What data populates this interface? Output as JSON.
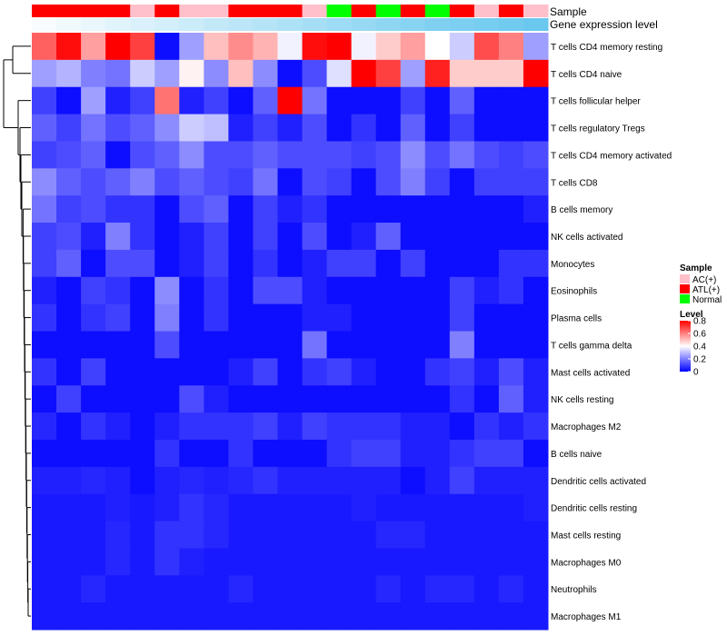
{
  "chart_data": {
    "type": "heatmap",
    "title": "",
    "annotation_labels": [
      "Sample",
      "Gene expression level"
    ],
    "sample_groups": [
      "ATL(+)",
      "ATL(+)",
      "ATL(+)",
      "ATL(+)",
      "AC(+)",
      "ATL(+)",
      "AC(+)",
      "AC(+)",
      "ATL(+)",
      "ATL(+)",
      "ATL(+)",
      "AC(+)",
      "Normal",
      "ATL(+)",
      "Normal",
      "ATL(+)",
      "Normal",
      "ATL(+)",
      "AC(+)",
      "ATL(+)",
      "AC(+)"
    ],
    "gene_expression_level": [
      0.05,
      0.1,
      0.15,
      0.2,
      0.25,
      0.3,
      0.35,
      0.4,
      0.45,
      0.5,
      0.55,
      0.6,
      0.65,
      0.7,
      0.75,
      0.8,
      0.85,
      0.88,
      0.91,
      0.95,
      1.0
    ],
    "rows": [
      "T cells CD4 memory resting",
      "T cells CD4 naive",
      "T cells follicular helper",
      "T cells regulatory  Tregs",
      "T cells CD4 memory activated",
      "T cells CD8",
      "B cells memory",
      "NK cells activated",
      "Monocytes",
      "Eosinophils",
      "Plasma cells",
      "T cells gamma delta",
      "Mast cells activated",
      "NK cells resting",
      "Macrophages M2",
      "B cells naive",
      "Dendritic cells activated",
      "Dendritic cells resting",
      "Mast cells resting",
      "Macrophages M0",
      "Neutrophils",
      "Macrophages M1"
    ],
    "values": [
      [
        0.65,
        0.78,
        0.55,
        0.8,
        0.7,
        0.02,
        0.25,
        0.5,
        0.58,
        0.52,
        0.38,
        0.78,
        0.8,
        0.38,
        0.48,
        0.55,
        0.4,
        0.32,
        0.68,
        0.6,
        0.25
      ],
      [
        0.25,
        0.28,
        0.2,
        0.18,
        0.32,
        0.25,
        0.42,
        0.22,
        0.5,
        0.22,
        0.02,
        0.12,
        0.35,
        0.82,
        0.7,
        0.25,
        0.75,
        0.48,
        0.48,
        0.48,
        0.82
      ],
      [
        0.1,
        0.02,
        0.25,
        0.05,
        0.1,
        0.62,
        0.05,
        0.1,
        0.02,
        0.15,
        0.8,
        0.18,
        0.02,
        0.02,
        0.02,
        0.1,
        0.02,
        0.15,
        0.02,
        0.02,
        0.02
      ],
      [
        0.15,
        0.1,
        0.18,
        0.12,
        0.15,
        0.22,
        0.32,
        0.3,
        0.05,
        0.1,
        0.05,
        0.12,
        0.02,
        0.08,
        0.02,
        0.15,
        0.02,
        0.1,
        0.02,
        0.02,
        0.02
      ],
      [
        0.1,
        0.12,
        0.15,
        0.02,
        0.12,
        0.15,
        0.22,
        0.12,
        0.12,
        0.15,
        0.12,
        0.12,
        0.12,
        0.1,
        0.12,
        0.22,
        0.12,
        0.18,
        0.12,
        0.1,
        0.12
      ],
      [
        0.22,
        0.15,
        0.12,
        0.15,
        0.2,
        0.12,
        0.15,
        0.12,
        0.1,
        0.18,
        0.02,
        0.12,
        0.1,
        0.02,
        0.12,
        0.2,
        0.1,
        0.02,
        0.1,
        0.1,
        0.1
      ],
      [
        0.18,
        0.1,
        0.12,
        0.08,
        0.08,
        0.02,
        0.12,
        0.15,
        0.02,
        0.1,
        0.05,
        0.08,
        0.02,
        0.02,
        0.02,
        0.02,
        0.02,
        0.02,
        0.02,
        0.02,
        0.05
      ],
      [
        0.1,
        0.12,
        0.05,
        0.2,
        0.08,
        0.02,
        0.05,
        0.1,
        0.02,
        0.1,
        0.02,
        0.12,
        0.02,
        0.05,
        0.15,
        0.02,
        0.02,
        0.02,
        0.02,
        0.02,
        0.02
      ],
      [
        0.1,
        0.15,
        0.02,
        0.12,
        0.12,
        0.02,
        0.05,
        0.1,
        0.02,
        0.08,
        0.02,
        0.05,
        0.1,
        0.1,
        0.02,
        0.1,
        0.02,
        0.02,
        0.02,
        0.08,
        0.08
      ],
      [
        0.05,
        0.02,
        0.1,
        0.08,
        0.02,
        0.22,
        0.02,
        0.08,
        0.02,
        0.12,
        0.12,
        0.05,
        0.02,
        0.02,
        0.02,
        0.02,
        0.02,
        0.1,
        0.05,
        0.08,
        0.02
      ],
      [
        0.08,
        0.02,
        0.08,
        0.1,
        0.02,
        0.2,
        0.02,
        0.08,
        0.02,
        0.02,
        0.02,
        0.05,
        0.05,
        0.02,
        0.02,
        0.02,
        0.02,
        0.1,
        0.02,
        0.02,
        0.02
      ],
      [
        0.02,
        0.02,
        0.02,
        0.02,
        0.02,
        0.12,
        0.02,
        0.02,
        0.02,
        0.02,
        0.02,
        0.18,
        0.02,
        0.02,
        0.02,
        0.02,
        0.02,
        0.2,
        0.02,
        0.02,
        0.02
      ],
      [
        0.08,
        0.02,
        0.1,
        0.02,
        0.02,
        0.02,
        0.02,
        0.02,
        0.05,
        0.1,
        0.02,
        0.08,
        0.1,
        0.05,
        0.02,
        0.02,
        0.08,
        0.1,
        0.05,
        0.12,
        0.05
      ],
      [
        0.02,
        0.1,
        0.02,
        0.02,
        0.02,
        0.02,
        0.12,
        0.05,
        0.02,
        0.02,
        0.02,
        0.02,
        0.02,
        0.02,
        0.02,
        0.02,
        0.02,
        0.08,
        0.02,
        0.15,
        0.05
      ],
      [
        0.06,
        0.02,
        0.08,
        0.05,
        0.02,
        0.05,
        0.08,
        0.08,
        0.08,
        0.1,
        0.05,
        0.1,
        0.08,
        0.08,
        0.08,
        0.05,
        0.05,
        0.02,
        0.08,
        0.05,
        0.08
      ],
      [
        0.02,
        0.02,
        0.02,
        0.02,
        0.02,
        0.08,
        0.02,
        0.02,
        0.08,
        0.02,
        0.02,
        0.02,
        0.08,
        0.1,
        0.1,
        0.05,
        0.05,
        0.08,
        0.1,
        0.1,
        0.02
      ],
      [
        0.05,
        0.05,
        0.06,
        0.05,
        0.02,
        0.05,
        0.06,
        0.05,
        0.06,
        0.08,
        0.05,
        0.05,
        0.05,
        0.05,
        0.05,
        0.02,
        0.05,
        0.1,
        0.05,
        0.05,
        0.05
      ],
      [
        0.04,
        0.04,
        0.04,
        0.05,
        0.04,
        0.05,
        0.08,
        0.06,
        0.04,
        0.04,
        0.04,
        0.04,
        0.04,
        0.05,
        0.04,
        0.04,
        0.04,
        0.04,
        0.04,
        0.04,
        0.05
      ],
      [
        0.04,
        0.04,
        0.04,
        0.06,
        0.04,
        0.08,
        0.08,
        0.06,
        0.04,
        0.04,
        0.04,
        0.04,
        0.04,
        0.04,
        0.06,
        0.06,
        0.04,
        0.04,
        0.04,
        0.04,
        0.04
      ],
      [
        0.04,
        0.04,
        0.04,
        0.06,
        0.04,
        0.08,
        0.05,
        0.04,
        0.04,
        0.04,
        0.04,
        0.04,
        0.04,
        0.04,
        0.04,
        0.04,
        0.04,
        0.04,
        0.04,
        0.04,
        0.04
      ],
      [
        0.04,
        0.04,
        0.06,
        0.04,
        0.04,
        0.04,
        0.04,
        0.04,
        0.06,
        0.04,
        0.04,
        0.04,
        0.04,
        0.04,
        0.06,
        0.04,
        0.06,
        0.06,
        0.04,
        0.06,
        0.04
      ],
      [
        0.04,
        0.04,
        0.04,
        0.04,
        0.04,
        0.04,
        0.04,
        0.04,
        0.04,
        0.04,
        0.04,
        0.04,
        0.04,
        0.04,
        0.04,
        0.04,
        0.04,
        0.04,
        0.04,
        0.04,
        0.04
      ]
    ],
    "dendrogram": {
      "side": "left",
      "description": "row clustering tree"
    },
    "legend": {
      "placement": "right",
      "sample_title": "Sample",
      "sample_entries": [
        {
          "label": "AC(+)",
          "color": "#ffc0cb"
        },
        {
          "label": "ATL(+)",
          "color": "#ff0000"
        },
        {
          "label": "Normal",
          "color": "#00ff00"
        }
      ],
      "level_title": "Level",
      "level_ticks": [
        "0.8",
        "0.6",
        "0.4",
        "0.2",
        "0"
      ],
      "level_tick_values": [
        0.8,
        0.6,
        0.4,
        0.2,
        0
      ],
      "level_range": [
        0,
        0.8
      ]
    },
    "colors": {
      "low": "#0000ff",
      "mid": "#ffffff",
      "high": "#ff0000",
      "mid_value": 0.4,
      "annotation_low": "#ffffff",
      "annotation_high": "#6ac8ee"
    }
  }
}
